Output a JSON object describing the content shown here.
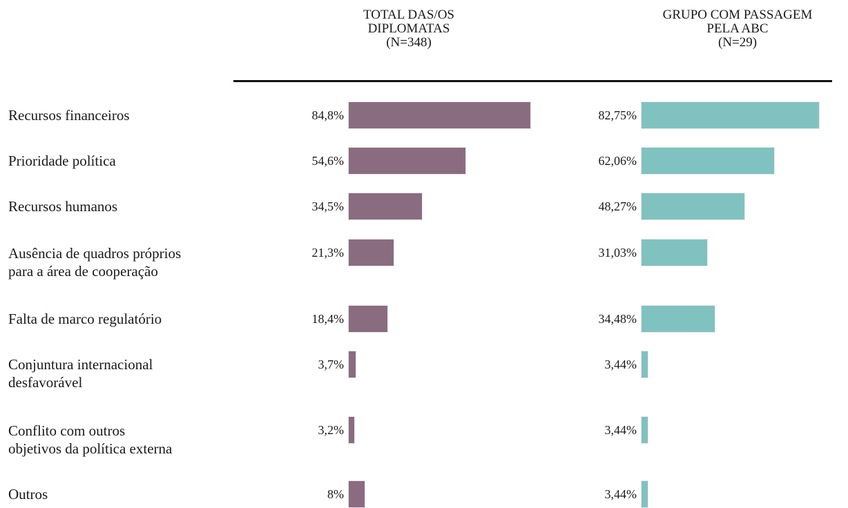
{
  "chart_data": {
    "type": "bar",
    "orientation": "horizontal",
    "categories": [
      "Recursos financeiros",
      "Prioridade política",
      "Recursos humanos",
      "Ausência de quadros próprios\npara a área de cooperação",
      "Falta de marco regulatório",
      "Conjuntura internacional\ndesfavorável",
      "Conflito com outros\nobjetivos da política externa",
      "Outros"
    ],
    "series": [
      {
        "name": "TOTAL DAS/OS\nDIPLOMATAS\n(N=348)",
        "color": "#8a6c80",
        "values": [
          84.8,
          54.6,
          34.5,
          21.3,
          18.4,
          3.7,
          3.2,
          8
        ],
        "value_labels": [
          "84,8%",
          "54,6%",
          "34,5%",
          "21,3%",
          "18,4%",
          "3,7%",
          "3,2%",
          "8%"
        ]
      },
      {
        "name": "GRUPO COM PASSAGEM\nPELA ABC\n(N=29)",
        "color": "#80c2c0",
        "values": [
          82.75,
          62.06,
          48.27,
          31.03,
          34.48,
          3.44,
          3.44,
          3.44
        ],
        "value_labels": [
          "82,75%",
          "62,06%",
          "48,27%",
          "31,03%",
          "34,48%",
          "3,44%",
          "3,44%",
          "3,44%"
        ]
      }
    ]
  }
}
